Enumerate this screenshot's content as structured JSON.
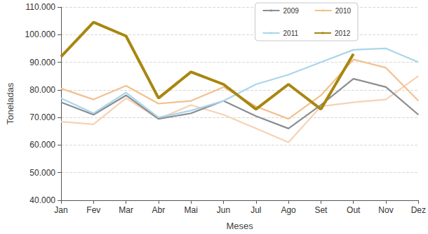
{
  "chart_data": {
    "type": "line",
    "x_label": "Meses",
    "y_label": "Toneladas",
    "categories": [
      "Jan",
      "Fev",
      "Mar",
      "Abr",
      "Mai",
      "Jun",
      "Jul",
      "Ago",
      "Set",
      "Out",
      "Nov",
      "Dez"
    ],
    "series": [
      {
        "color": "#f6d2b4",
        "values": [
          68500,
          67500,
          77000,
          69500,
          74500,
          71000,
          66000,
          61000,
          74000,
          75500,
          76500,
          85000
        ]
      },
      {
        "name": "2009",
        "color": "#8a8d91",
        "values": [
          75500,
          71000,
          78000,
          69500,
          71500,
          76000,
          70500,
          66000,
          74500,
          84000,
          81000,
          71000
        ]
      },
      {
        "name": "2011",
        "color": "#a9d6ea",
        "values": [
          77000,
          71500,
          79000,
          70000,
          72500,
          76000,
          82000,
          85500,
          90000,
          94500,
          95000,
          90000
        ]
      },
      {
        "name": "2010",
        "color": "#f2c08f",
        "values": [
          80500,
          76500,
          81500,
          75000,
          76000,
          81000,
          74000,
          69500,
          78000,
          91000,
          88000,
          76000
        ]
      },
      {
        "name": "2012",
        "color": "#a8860f",
        "values": [
          92000,
          104500,
          99500,
          77000,
          86500,
          82000,
          73000,
          82000,
          73000,
          93000,
          null,
          null
        ]
      }
    ],
    "ylim": [
      40000,
      110000
    ],
    "yticks": [
      {
        "value": 40000,
        "label": "40.000"
      },
      {
        "value": 50000,
        "label": "50.000"
      },
      {
        "value": 60000,
        "label": "60.000"
      },
      {
        "value": 70000,
        "label": "70.000"
      },
      {
        "value": 80000,
        "label": "80.000"
      },
      {
        "value": 90000,
        "label": "90.000"
      },
      {
        "value": 100000,
        "label": "100.000"
      },
      {
        "value": 110000,
        "label": "110.000"
      }
    ],
    "grid": true,
    "legend": "upper right"
  }
}
